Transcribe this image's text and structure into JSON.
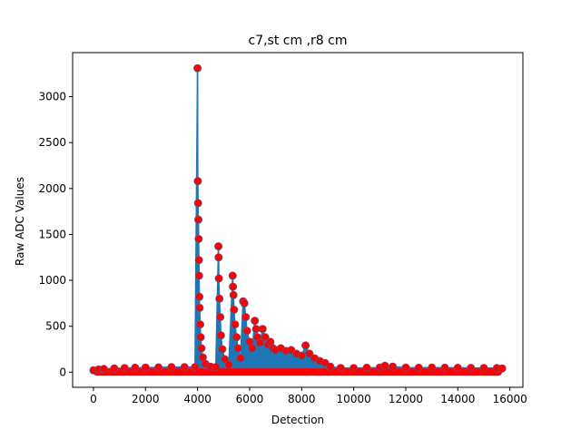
{
  "chart_data": {
    "type": "line",
    "title": "c7,st cm ,r8 cm",
    "xlabel": "Detection",
    "ylabel": "Raw ADC Values",
    "xlim": [
      -800,
      16500
    ],
    "ylim": [
      -165,
      3480
    ],
    "xticks": [
      0,
      2000,
      4000,
      6000,
      8000,
      10000,
      12000,
      14000,
      16000
    ],
    "yticks": [
      0,
      500,
      1000,
      1500,
      2000,
      2500,
      3000
    ],
    "grid": false,
    "legend": "none",
    "colors": {
      "line": "#1f77b4",
      "markers": "#ff0000"
    },
    "x_range": [
      0,
      15700
    ],
    "series": [
      {
        "style": "line_with_markers",
        "points": [
          [
            0,
            20
          ],
          [
            200,
            30
          ],
          [
            400,
            35
          ],
          [
            800,
            40
          ],
          [
            1200,
            45
          ],
          [
            1600,
            48
          ],
          [
            2000,
            50
          ],
          [
            2500,
            52
          ],
          [
            3000,
            55
          ],
          [
            3500,
            55
          ],
          [
            3900,
            55
          ],
          [
            4000,
            3310
          ],
          [
            4010,
            2080
          ],
          [
            4020,
            1840
          ],
          [
            4030,
            1660
          ],
          [
            4040,
            1450
          ],
          [
            4050,
            1220
          ],
          [
            4060,
            1050
          ],
          [
            4070,
            820
          ],
          [
            4080,
            700
          ],
          [
            4100,
            520
          ],
          [
            4120,
            380
          ],
          [
            4150,
            260
          ],
          [
            4200,
            160
          ],
          [
            4300,
            90
          ],
          [
            4500,
            60
          ],
          [
            4700,
            55
          ],
          [
            4800,
            1370
          ],
          [
            4810,
            1250
          ],
          [
            4820,
            1020
          ],
          [
            4840,
            800
          ],
          [
            4870,
            600
          ],
          [
            4900,
            400
          ],
          [
            4950,
            250
          ],
          [
            5050,
            140
          ],
          [
            5200,
            80
          ],
          [
            5350,
            1050
          ],
          [
            5360,
            930
          ],
          [
            5380,
            840
          ],
          [
            5400,
            680
          ],
          [
            5440,
            520
          ],
          [
            5500,
            380
          ],
          [
            5550,
            260
          ],
          [
            5650,
            150
          ],
          [
            5750,
            770
          ],
          [
            5800,
            750
          ],
          [
            5850,
            600
          ],
          [
            5900,
            450
          ],
          [
            6000,
            330
          ],
          [
            6100,
            260
          ],
          [
            6200,
            560
          ],
          [
            6250,
            470
          ],
          [
            6300,
            380
          ],
          [
            6400,
            320
          ],
          [
            6500,
            470
          ],
          [
            6600,
            380
          ],
          [
            6700,
            300
          ],
          [
            6800,
            330
          ],
          [
            6900,
            260
          ],
          [
            7000,
            240
          ],
          [
            7200,
            260
          ],
          [
            7400,
            230
          ],
          [
            7600,
            240
          ],
          [
            7800,
            200
          ],
          [
            8000,
            180
          ],
          [
            8150,
            290
          ],
          [
            8300,
            200
          ],
          [
            8500,
            150
          ],
          [
            8700,
            120
          ],
          [
            8900,
            100
          ],
          [
            9100,
            60
          ],
          [
            9500,
            45
          ],
          [
            10000,
            45
          ],
          [
            10500,
            48
          ],
          [
            11000,
            50
          ],
          [
            11200,
            70
          ],
          [
            11500,
            60
          ],
          [
            12000,
            50
          ],
          [
            12500,
            48
          ],
          [
            13000,
            50
          ],
          [
            13500,
            48
          ],
          [
            14000,
            47
          ],
          [
            14500,
            46
          ],
          [
            15000,
            45
          ],
          [
            15500,
            44
          ],
          [
            15700,
            40
          ]
        ]
      }
    ]
  }
}
